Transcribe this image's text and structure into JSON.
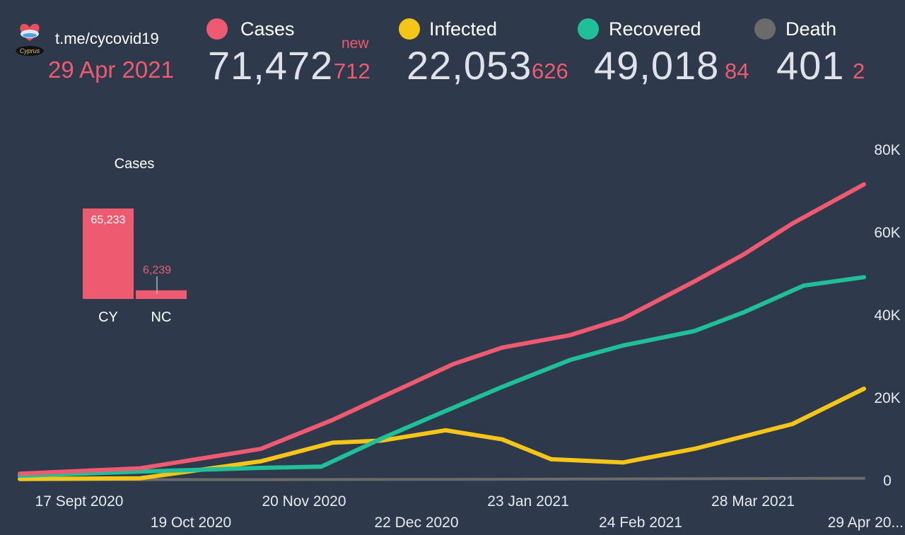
{
  "header": {
    "source": "t.me/cycovid19",
    "date": "29 Apr 2021",
    "new_tag": "new",
    "logo_icon": "cyprus-heart-logo-icon",
    "stats": [
      {
        "label": "Cases",
        "value": "71,472",
        "new": "712",
        "color": "#ee5a6f"
      },
      {
        "label": "Infected",
        "value": "22,053",
        "new": "626",
        "color": "#f5c518"
      },
      {
        "label": "Recovered",
        "value": "49,018",
        "new": "84",
        "color": "#1fbf99"
      },
      {
        "label": "Death",
        "value": "401",
        "new": "2",
        "color": "#6b6b6b"
      }
    ]
  },
  "chart_data": [
    {
      "type": "bar",
      "title": "Cases",
      "categories": [
        "CY",
        "NC"
      ],
      "values": [
        65233,
        6239
      ],
      "value_labels": [
        "65,233",
        "6,239"
      ],
      "color": "#ee5a6f"
    },
    {
      "type": "line",
      "x_ticks": [
        "17 Sept 2020",
        "19 Oct 2020",
        "20 Nov 2020",
        "22 Dec 2020",
        "23 Jan 2021",
        "24 Feb 2021",
        "28 Mar 2021",
        "29 Apr 20..."
      ],
      "y_ticks": [
        "80K",
        "60K",
        "40K",
        "20K",
        "0"
      ],
      "ylim": [
        0,
        80000
      ],
      "y_axis_side": "right",
      "grid": false,
      "series": [
        {
          "name": "Cases",
          "color": "#ee5a6f",
          "x": [
            "2020-09-17",
            "2020-10-19",
            "2020-11-20",
            "2020-12-09",
            "2020-12-22",
            "2021-01-10",
            "2021-01-23",
            "2021-02-10",
            "2021-02-24",
            "2021-03-15",
            "2021-03-28",
            "2021-04-10",
            "2021-04-29"
          ],
          "y": [
            1500,
            2800,
            7500,
            14500,
            20000,
            28000,
            32000,
            35000,
            39000,
            48000,
            54500,
            62000,
            71472
          ]
        },
        {
          "name": "Infected",
          "color": "#f5c518",
          "x": [
            "2020-09-17",
            "2020-10-19",
            "2020-11-20",
            "2020-12-09",
            "2020-12-22",
            "2021-01-08",
            "2021-01-23",
            "2021-02-05",
            "2021-02-24",
            "2021-03-15",
            "2021-03-28",
            "2021-04-10",
            "2021-04-29"
          ],
          "y": [
            200,
            400,
            4500,
            9000,
            9500,
            12000,
            9800,
            5000,
            4200,
            7500,
            10500,
            13500,
            22053
          ]
        },
        {
          "name": "Recovered",
          "color": "#1fbf99",
          "x": [
            "2020-09-17",
            "2020-10-19",
            "2020-11-20",
            "2020-12-06",
            "2020-12-22",
            "2021-01-05",
            "2021-01-23",
            "2021-02-10",
            "2021-02-24",
            "2021-03-15",
            "2021-03-28",
            "2021-04-13",
            "2021-04-29"
          ],
          "y": [
            1000,
            2000,
            2900,
            3200,
            10000,
            15500,
            22500,
            29000,
            32500,
            36000,
            40500,
            47000,
            49018
          ]
        },
        {
          "name": "Death",
          "color": "#6b6b6b",
          "x": [
            "2020-09-17",
            "2020-11-20",
            "2021-01-23",
            "2021-03-28",
            "2021-04-29"
          ],
          "y": [
            30,
            60,
            150,
            330,
            401
          ]
        }
      ]
    }
  ]
}
